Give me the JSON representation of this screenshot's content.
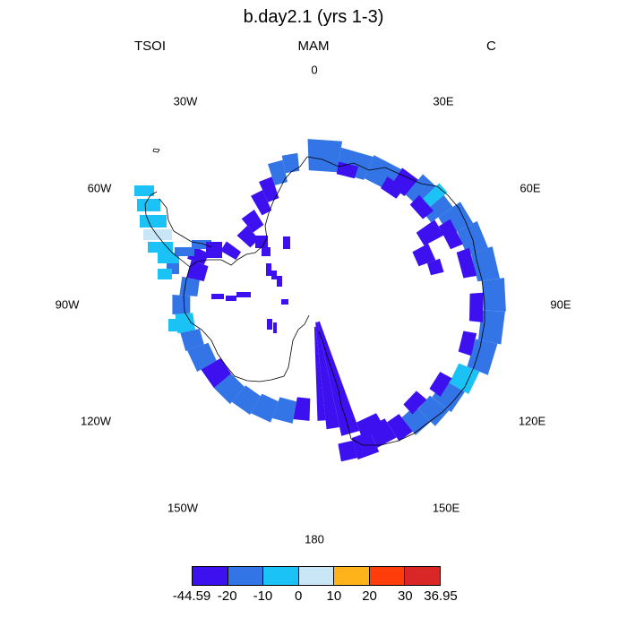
{
  "title": "b.day2.1 (yrs 1-3)",
  "variable": "TSOI",
  "season": "MAM",
  "units": "C",
  "longitude_labels": [
    "0",
    "30E",
    "60E",
    "90E",
    "120E",
    "150E",
    "180",
    "150W",
    "120W",
    "90W",
    "60W",
    "30W"
  ],
  "colorbar": {
    "labels": [
      "-44.59",
      "-20",
      "-10",
      "0",
      "10",
      "20",
      "30",
      "36.95"
    ],
    "colors": [
      "#3d10f0",
      "#3374e6",
      "#1ac2f5",
      "#c8e6f5",
      "#ffb31a",
      "#ff3d0a",
      "#d92626"
    ]
  },
  "map": {
    "projection": "south polar stereographic",
    "dominant_color": "#3d10f0"
  }
}
